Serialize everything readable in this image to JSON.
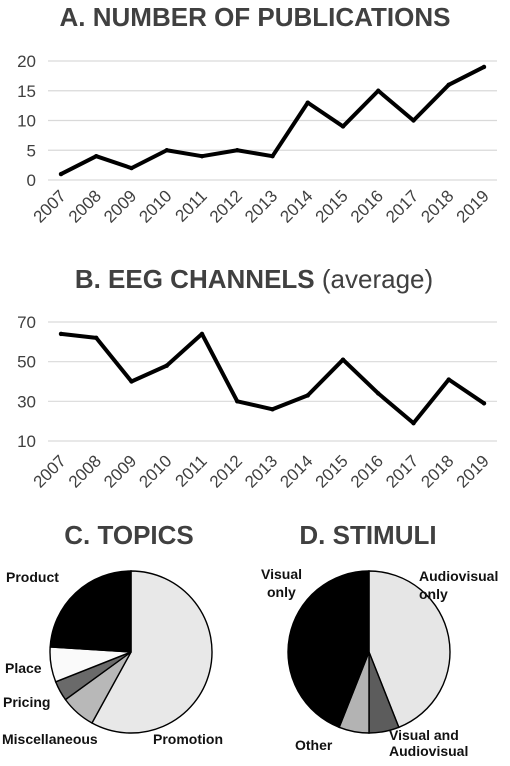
{
  "chart_data": [
    {
      "type": "line",
      "title": "A. NUMBER OF PUBLICATIONS",
      "title_suffix": "",
      "categories": [
        "2007",
        "2008",
        "2009",
        "2010",
        "2011",
        "2012",
        "2013",
        "2014",
        "2015",
        "2016",
        "2017",
        "2018",
        "2019"
      ],
      "series": [
        {
          "values": [
            1,
            4,
            2,
            5,
            4,
            5,
            4,
            13,
            9,
            15,
            10,
            16,
            19
          ]
        }
      ],
      "ylim": [
        0,
        20
      ],
      "yticks": [
        0,
        5,
        10,
        15,
        20
      ],
      "grid": true,
      "colors": {
        "line": "#000000",
        "grid": "#d9d9d9"
      }
    },
    {
      "type": "line",
      "title": "B. EEG CHANNELS",
      "title_suffix": "(average)",
      "categories": [
        "2007",
        "2008",
        "2009",
        "2010",
        "2011",
        "2012",
        "2013",
        "2014",
        "2015",
        "2016",
        "2017",
        "2018",
        "2019"
      ],
      "series": [
        {
          "values": [
            64,
            62,
            40,
            48,
            64,
            30,
            26,
            33,
            51,
            34,
            19,
            41,
            29
          ]
        }
      ],
      "ylim": [
        10,
        70
      ],
      "yticks": [
        10,
        30,
        50,
        70
      ],
      "grid": true,
      "colors": {
        "line": "#000000",
        "grid": "#d9d9d9"
      }
    },
    {
      "type": "pie",
      "title": "C. TOPICS",
      "start": "12 o'clock, clockwise",
      "slices": [
        {
          "label": "Promotion",
          "value": 58,
          "color": "#e8e8e8"
        },
        {
          "label": "Miscellaneous",
          "value": 7,
          "color": "#b8b8b8"
        },
        {
          "label": "Pricing",
          "value": 4,
          "color": "#6a6a6a"
        },
        {
          "label": "Place",
          "value": 7,
          "color": "#fafafa"
        },
        {
          "label": "Product",
          "value": 24,
          "color": "#000000"
        }
      ]
    },
    {
      "type": "pie",
      "title": "D. STIMULI",
      "start": "12 o'clock, clockwise",
      "slices": [
        {
          "label": "Audiovisual only",
          "value": 44,
          "color": "#e6e6e6"
        },
        {
          "label": "Visual and Audiovisual",
          "value": 6,
          "color": "#5c5c5c"
        },
        {
          "label": "Other",
          "value": 6,
          "color": "#b3b3b3"
        },
        {
          "label": "Visual only",
          "value": 44,
          "color": "#000000"
        }
      ]
    }
  ]
}
